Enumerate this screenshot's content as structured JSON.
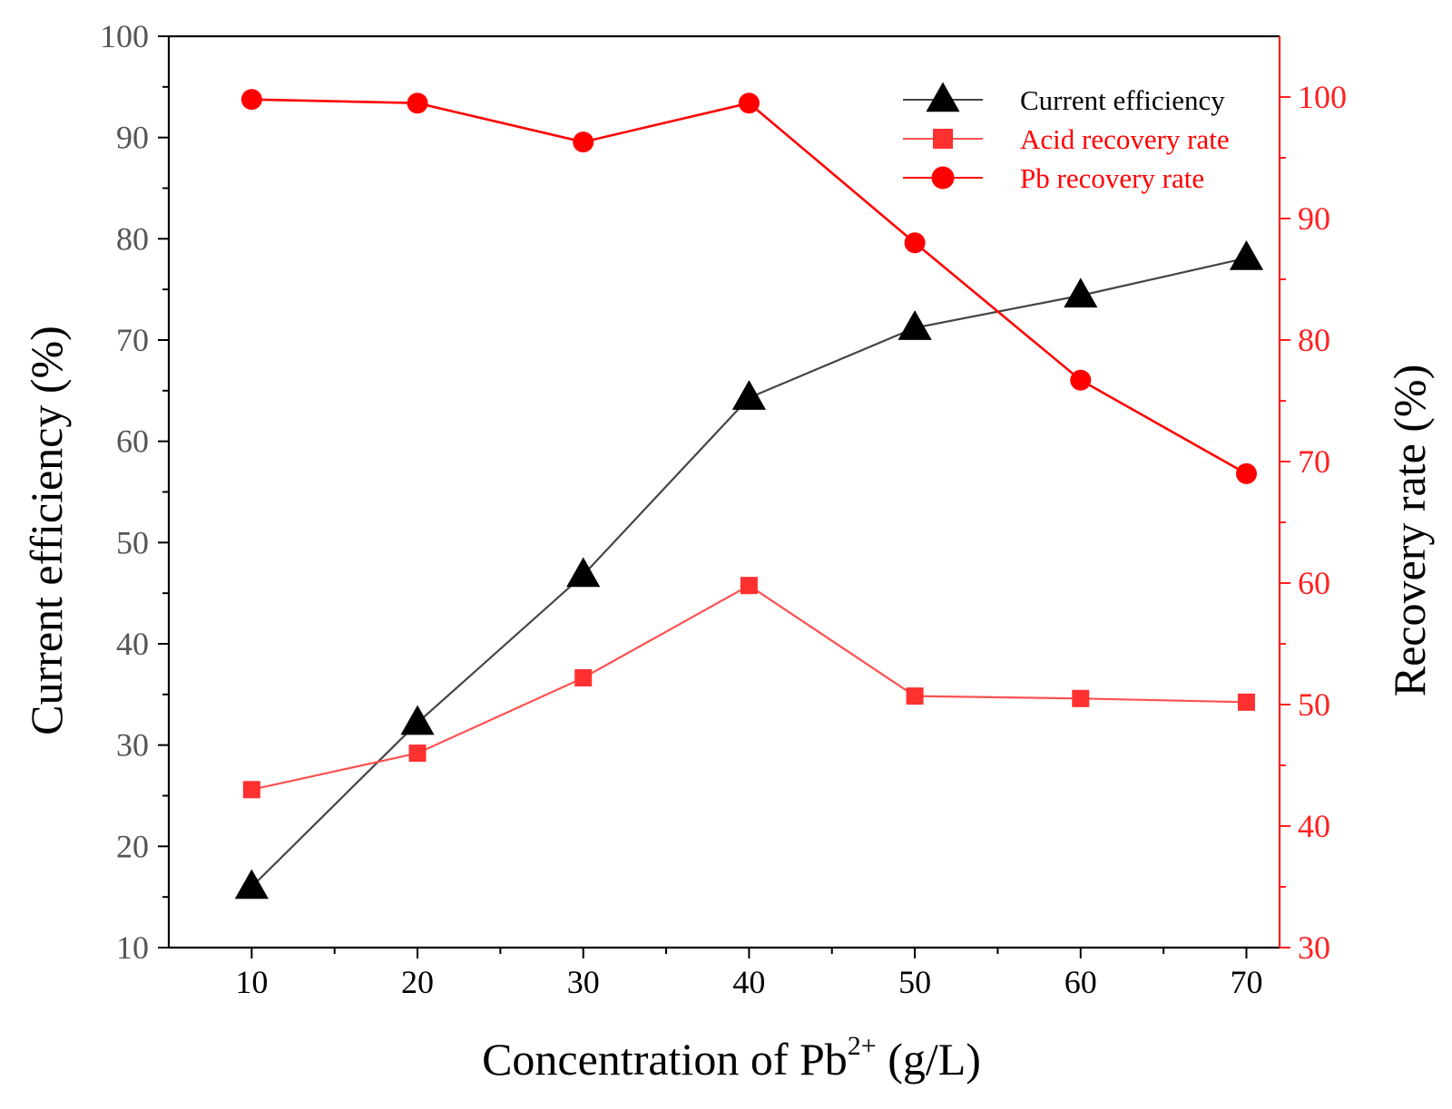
{
  "chart_data": {
    "type": "line",
    "title": "",
    "xlabel": {
      "prefix": "Concentration  of Pb",
      "superscript": "2+",
      "suffix": " (g/L)"
    },
    "ylabel_left": "Current efficiency (%)",
    "ylabel_right": "Recovery  rate (%)",
    "x": [
      10,
      20,
      30,
      40,
      50,
      60,
      70
    ],
    "x_ticks": [
      "10",
      "20",
      "30",
      "40",
      "50",
      "60",
      "70"
    ],
    "xlim": [
      5,
      72
    ],
    "ylim_left": [
      10,
      100
    ],
    "ylim_right": [
      30,
      105
    ],
    "y_ticks_left": [
      "10",
      "20",
      "30",
      "40",
      "50",
      "60",
      "70",
      "80",
      "90",
      "100"
    ],
    "y_ticks_right": [
      "30",
      "40",
      "50",
      "60",
      "70",
      "80",
      "90",
      "100"
    ],
    "grid": false,
    "legend_position": "top-right",
    "series": [
      {
        "name": "Current efficiency",
        "axis": "left",
        "marker": "triangle",
        "color": "#000000",
        "line_color": "#444444",
        "values": [
          16,
          32.2,
          46.8,
          64.3,
          71.2,
          74.4,
          78.1
        ]
      },
      {
        "name": "Acid recovery rate",
        "axis": "right",
        "marker": "square",
        "color": "#ff3030",
        "line_color": "#ff5050",
        "values": [
          43.0,
          46.0,
          52.2,
          59.8,
          50.7,
          50.5,
          50.2
        ]
      },
      {
        "name": "Pb recovery rate",
        "axis": "right",
        "marker": "circle",
        "color": "#ff0000",
        "line_color": "#ff0000",
        "values": [
          99.8,
          99.5,
          96.3,
          99.5,
          88.0,
          76.7,
          69.0
        ]
      }
    ]
  }
}
